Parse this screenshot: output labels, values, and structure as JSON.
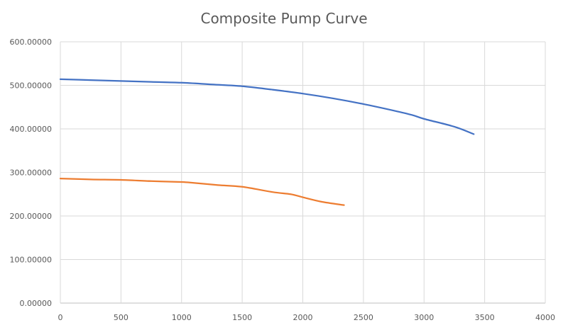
{
  "chart_data": {
    "type": "line",
    "title": "Composite Pump Curve",
    "xlabel": "",
    "ylabel": "",
    "xlim": [
      0,
      4000
    ],
    "ylim": [
      0,
      600
    ],
    "x_ticks": [
      0,
      500,
      1000,
      1500,
      2000,
      2500,
      3000,
      3500,
      4000
    ],
    "x_tick_labels": [
      "0",
      "500",
      "1000",
      "1500",
      "2000",
      "2500",
      "3000",
      "3500",
      "4000"
    ],
    "y_ticks": [
      0,
      100,
      200,
      300,
      400,
      500,
      600
    ],
    "y_tick_labels": [
      "0.00000",
      "100.00000",
      "200.00000",
      "300.00000",
      "400.00000",
      "500.00000",
      "600.00000"
    ],
    "grid": true,
    "legend": "none",
    "series": [
      {
        "color": "#4472C4",
        "points": [
          [
            0,
            514
          ],
          [
            250,
            512
          ],
          [
            500,
            510
          ],
          [
            750,
            508
          ],
          [
            1000,
            506
          ],
          [
            1250,
            502
          ],
          [
            1500,
            498
          ],
          [
            1750,
            490
          ],
          [
            2000,
            481
          ],
          [
            2250,
            470
          ],
          [
            2500,
            457
          ],
          [
            2750,
            442
          ],
          [
            2900,
            432
          ],
          [
            3000,
            423
          ],
          [
            3250,
            405
          ],
          [
            3410,
            388
          ]
        ]
      },
      {
        "color": "#ED7D31",
        "points": [
          [
            0,
            286
          ],
          [
            250,
            284
          ],
          [
            500,
            283
          ],
          [
            750,
            280
          ],
          [
            1000,
            278
          ],
          [
            1100,
            276
          ],
          [
            1300,
            271
          ],
          [
            1500,
            267
          ],
          [
            1750,
            255
          ],
          [
            1900,
            250
          ],
          [
            2000,
            243
          ],
          [
            2150,
            233
          ],
          [
            2340,
            225
          ]
        ]
      }
    ]
  }
}
